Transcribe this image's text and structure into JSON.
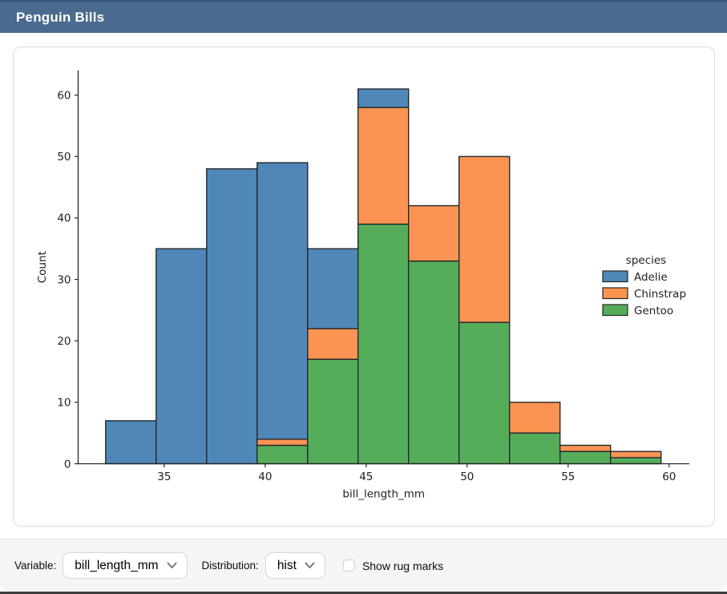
{
  "header": {
    "title": "Penguin Bills",
    "bg_color": "#4a6a8e"
  },
  "controls": {
    "variable_label": "Variable:",
    "variable_value": "bill_length_mm",
    "distribution_label": "Distribution:",
    "distribution_value": "hist",
    "rug_label": "Show rug marks",
    "rug_checked": false
  },
  "icons": {
    "dropdown": "chevron-down"
  },
  "chart_data": {
    "type": "bar",
    "stacked": true,
    "title": "",
    "xlabel": "bill_length_mm",
    "ylabel": "Count",
    "bin_edges": [
      32.1,
      34.6,
      37.1,
      39.6,
      42.1,
      44.6,
      47.1,
      49.6,
      52.1,
      54.6,
      57.1,
      59.6
    ],
    "series": [
      {
        "name": "Gentoo",
        "color": "#55ad5a",
        "values": [
          0,
          0,
          0,
          3,
          17,
          39,
          33,
          23,
          5,
          2,
          1
        ]
      },
      {
        "name": "Chinstrap",
        "color": "#fb9453",
        "values": [
          0,
          0,
          0,
          1,
          5,
          19,
          9,
          27,
          5,
          1,
          1
        ]
      },
      {
        "name": "Adelie",
        "color": "#4f88b8",
        "values": [
          7,
          35,
          48,
          45,
          13,
          3,
          0,
          0,
          0,
          0,
          0
        ]
      }
    ],
    "bar_totals": [
      7,
      35,
      48,
      49,
      35,
      61,
      42,
      50,
      10,
      3,
      2
    ],
    "edge_color": "#24282c",
    "x_ticks": [
      35,
      40,
      45,
      50,
      55,
      60
    ],
    "y_ticks": [
      0,
      10,
      20,
      30,
      40,
      50,
      60
    ],
    "xlim": [
      30.74,
      61.0
    ],
    "ylim": [
      0,
      64
    ],
    "grid": false,
    "legend": {
      "title": "species",
      "position": "center-right",
      "entries": [
        {
          "label": "Adelie",
          "color": "#4f88b8"
        },
        {
          "label": "Chinstrap",
          "color": "#fb9453"
        },
        {
          "label": "Gentoo",
          "color": "#55ad5a"
        }
      ]
    }
  }
}
